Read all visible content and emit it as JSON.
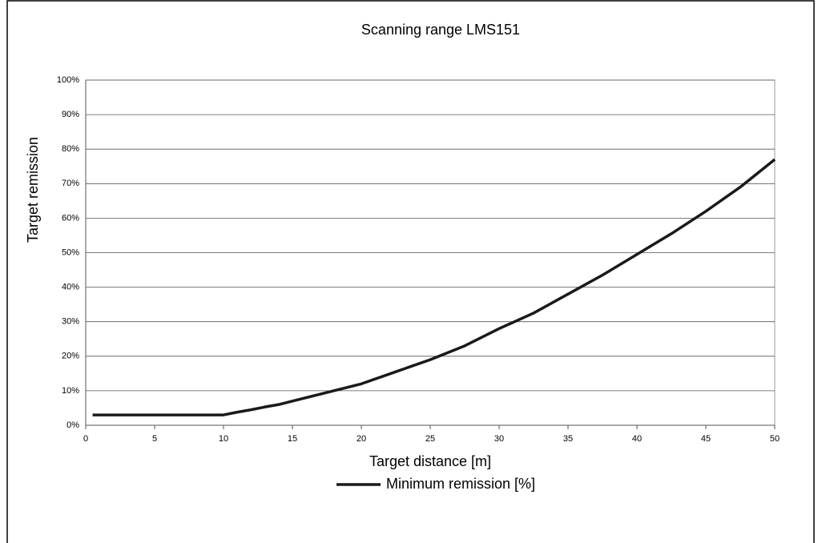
{
  "chart_data": {
    "type": "line",
    "title": "Scanning range LMS151",
    "x_label": "Target distance [m]",
    "y_label": "Target remission",
    "x": [
      0.5,
      10,
      11,
      12,
      13,
      14,
      15,
      17.5,
      20,
      22.5,
      25,
      27.5,
      30,
      32.5,
      35,
      37.5,
      40,
      42.5,
      45,
      47.5,
      50
    ],
    "series": [
      {
        "name": "Minimum remission [%]",
        "color": "#1a1a1a",
        "values": [
          3,
          3,
          3.8,
          4.5,
          5.3,
          6,
          7,
          9.5,
          12,
          15.5,
          19,
          23,
          28,
          32.5,
          38,
          43.5,
          49.5,
          55.5,
          62,
          69,
          77
        ]
      }
    ],
    "xlim": [
      0,
      50
    ],
    "xticks": [
      0,
      5,
      10,
      15,
      20,
      25,
      30,
      35,
      40,
      45,
      50
    ],
    "ylim": [
      0,
      100
    ],
    "yticks": [
      {
        "value": 0,
        "label": "0%"
      },
      {
        "value": 10,
        "label": "10%"
      },
      {
        "value": 20,
        "label": "20%"
      },
      {
        "value": 30,
        "label": "30%"
      },
      {
        "value": 40,
        "label": "40%"
      },
      {
        "value": 50,
        "label": "50%"
      },
      {
        "value": 60,
        "label": "60%"
      },
      {
        "value": 70,
        "label": "70%"
      },
      {
        "value": 80,
        "label": "80%"
      },
      {
        "value": 90,
        "label": "90%"
      },
      {
        "value": 100,
        "label": "100%"
      }
    ],
    "grid": true,
    "legend": "bottom"
  }
}
